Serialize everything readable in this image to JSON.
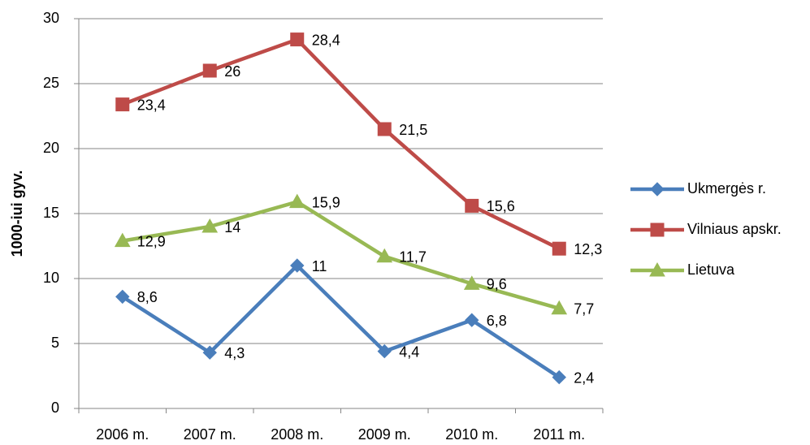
{
  "chart_data": {
    "type": "line",
    "y_label": "1000-iui gyv.",
    "categories": [
      "2006 m.",
      "2007 m.",
      "2008 m.",
      "2009 m.",
      "2010 m.",
      "2011 m."
    ],
    "series": [
      {
        "name": "Ukmergės r.",
        "color": "#4a7ebb",
        "marker": "diamond",
        "values": [
          8.6,
          4.3,
          11,
          4.4,
          6.8,
          2.4
        ],
        "value_labels": [
          "8,6",
          "4,3",
          "11",
          "4,4",
          "6,8",
          "2,4"
        ]
      },
      {
        "name": "Vilniaus apskr.",
        "color": "#be4b48",
        "marker": "square",
        "values": [
          23.4,
          26,
          28.4,
          21.5,
          15.6,
          12.3
        ],
        "value_labels": [
          "23,4",
          "26",
          "28,4",
          "21,5",
          "15,6",
          "12,3"
        ]
      },
      {
        "name": "Lietuva",
        "color": "#98b954",
        "marker": "triangle",
        "values": [
          12.9,
          14,
          15.9,
          11.7,
          9.6,
          7.7
        ],
        "value_labels": [
          "12,9",
          "14",
          "15,9",
          "11,7",
          "9,6",
          "7,7"
        ]
      }
    ],
    "ylim": [
      0,
      30
    ],
    "yticks": [
      0,
      5,
      10,
      15,
      20,
      25,
      30
    ],
    "grid": true,
    "legend": "right"
  }
}
